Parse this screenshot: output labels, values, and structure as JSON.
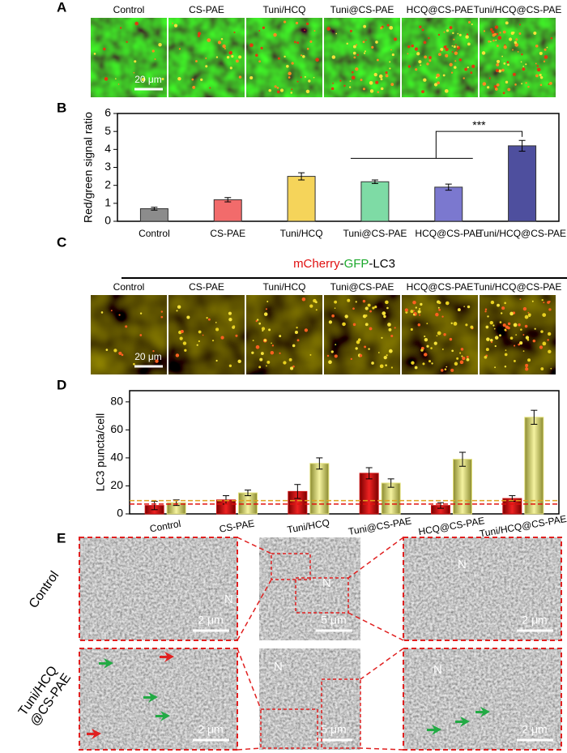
{
  "panels": {
    "A": {
      "label": "A",
      "columns": [
        "Control",
        "CS-PAE",
        "Tuni/HCQ",
        "Tuni@CS-PAE",
        "HCQ@CS-PAE",
        "Tuni/HCQ@CS-PAE"
      ],
      "scale_bar": "20 μm"
    },
    "C": {
      "label": "C",
      "title_parts": [
        "mCherry",
        "-",
        "GFP",
        "-LC3"
      ],
      "columns": [
        "Control",
        "CS-PAE",
        "Tuni/HCQ",
        "Tuni@CS-PAE",
        "HCQ@CS-PAE",
        "Tuni/HCQ@CS-PAE"
      ],
      "scale_bar": "20 μm"
    },
    "E": {
      "label": "E",
      "rows": [
        [
          "Control"
        ],
        [
          "Tuni/HCQ",
          "@CS-PAE"
        ]
      ],
      "images": [
        {
          "scale_bar": "2 μm",
          "nucleus": "N"
        },
        {
          "scale_bar": "5 μm",
          "nucleus": "N"
        },
        {
          "scale_bar": "2 μm",
          "nucleus": "N"
        },
        {
          "scale_bar": "2 μm"
        },
        {
          "scale_bar": "5 μm",
          "nucleus": "N"
        },
        {
          "scale_bar": "2 μm",
          "nucleus": "N"
        }
      ]
    }
  },
  "chart_data": [
    {
      "type": "bar",
      "panel_label": "B",
      "ylabel": "Red/green signal ratio",
      "categories": [
        "Control",
        "CS-PAE",
        "Tuni/HCQ",
        "Tuni@CS-PAE",
        "HCQ@CS-PAE",
        "Tuni/HCQ@CS-PAE"
      ],
      "values": [
        0.7,
        1.2,
        2.5,
        2.2,
        1.9,
        4.2
      ],
      "errors": [
        0.08,
        0.12,
        0.2,
        0.1,
        0.17,
        0.3
      ],
      "colors": [
        "#8c8c8c",
        "#f26b6b",
        "#f5d45a",
        "#7edba5",
        "#7b78cf",
        "#4e4f9e"
      ],
      "ylim": [
        0,
        6
      ],
      "yticks": [
        0,
        1,
        2,
        3,
        4,
        5,
        6
      ],
      "annotation": "***"
    },
    {
      "type": "grouped_bar",
      "panel_label": "D",
      "ylabel": "LC3 puncta/cell",
      "categories": [
        "Control",
        "CS-PAE",
        "Tuni/HCQ",
        "Tuni@CS-PAE",
        "HCQ@CS-PAE",
        "Tuni/HCQ@CS-PAE"
      ],
      "series": [
        {
          "color": "#cc1111",
          "values": [
            6,
            10,
            16,
            29,
            6,
            11
          ],
          "errors": [
            3,
            3,
            5,
            4,
            2,
            2
          ]
        },
        {
          "color": "#e3e07a",
          "values": [
            8,
            15,
            36,
            22,
            39,
            69
          ],
          "errors": [
            2,
            2,
            4,
            3,
            5,
            5
          ]
        }
      ],
      "reference_lines": [
        {
          "value": 7,
          "color": "#e01010"
        },
        {
          "value": 9.5,
          "color": "#e0a020"
        }
      ],
      "ylim": [
        0,
        88
      ],
      "yticks": [
        0,
        20,
        40,
        60,
        80
      ]
    }
  ]
}
